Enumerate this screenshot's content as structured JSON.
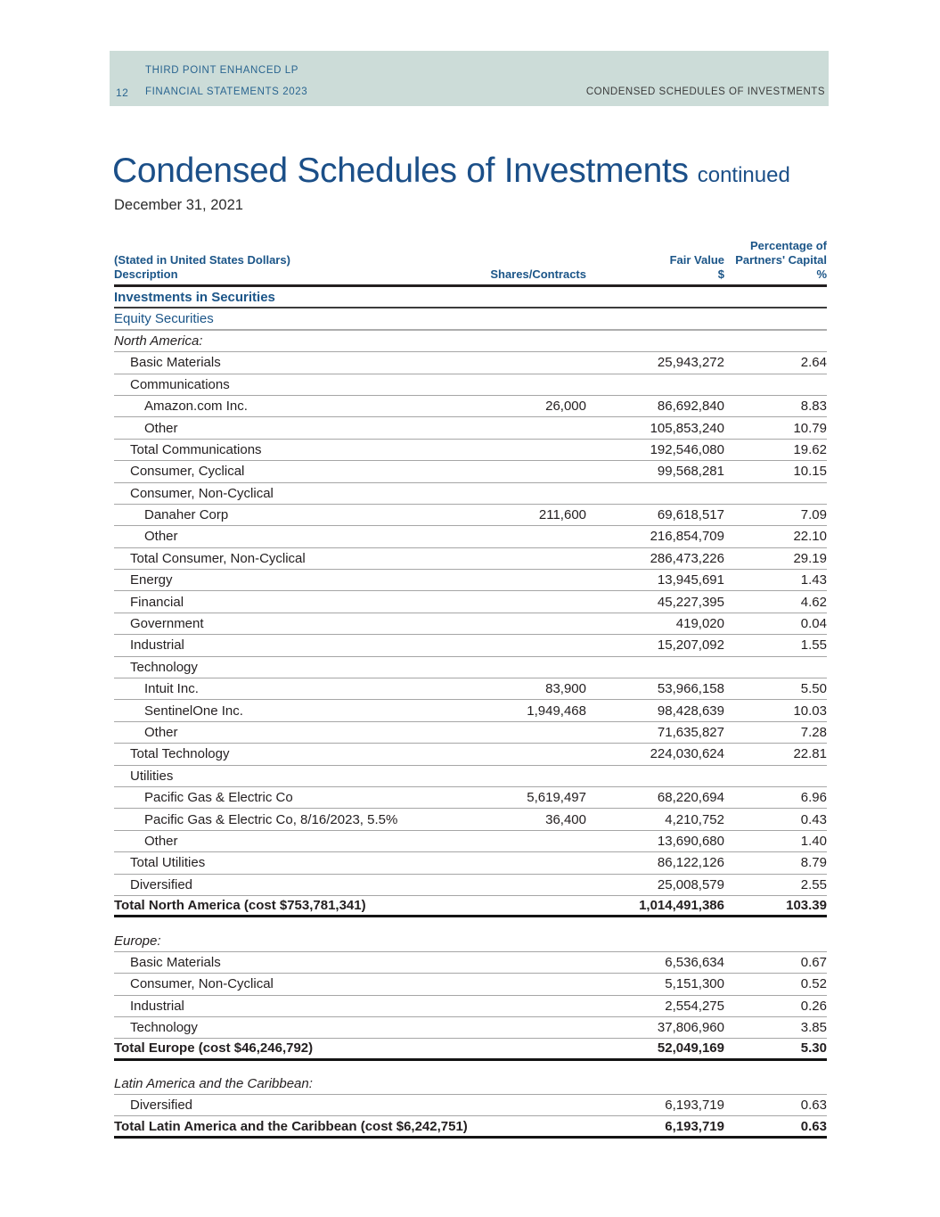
{
  "header_bar": {
    "page_number": "12",
    "line1": "THIRD POINT ENHANCED LP",
    "line2": "FINANCIAL STATEMENTS 2023",
    "right_text": "CONDENSED SCHEDULES OF INVESTMENTS",
    "bg_color": "#ccdcd8",
    "text_color": "#2a6590"
  },
  "title": {
    "main": "Condensed Schedules of Investments",
    "suffix": "continued",
    "date": "December 31, 2021",
    "accent_color": "#1b4f88"
  },
  "table": {
    "header": {
      "stated": "(Stated in United States Dollars)",
      "description": "Description",
      "shares": "Shares/Contracts",
      "fair_value_line1": "Fair Value",
      "fair_value_line2": "$",
      "pct_line1": "Percentage of",
      "pct_line2": "Partners' Capital",
      "pct_line3": "%"
    },
    "rows": [
      {
        "label": "Investments in Securities",
        "style": "head-bold-blue",
        "indent": 0
      },
      {
        "label": "Equity Securities",
        "style": "head-blue",
        "indent": 0
      },
      {
        "label": "North America:",
        "style": "region",
        "indent": 0
      },
      {
        "label": "Basic Materials",
        "indent": 1,
        "fair": "25,943,272",
        "pct": "2.64"
      },
      {
        "label": "Communications",
        "indent": 1
      },
      {
        "label": "Amazon.com Inc.",
        "indent": 2,
        "shares": "26,000",
        "fair": "86,692,840",
        "pct": "8.83"
      },
      {
        "label": "Other",
        "indent": 2,
        "fair": "105,853,240",
        "pct": "10.79"
      },
      {
        "label": "Total Communications",
        "indent": 1,
        "fair": "192,546,080",
        "pct": "19.62"
      },
      {
        "label": "Consumer, Cyclical",
        "indent": 1,
        "fair": "99,568,281",
        "pct": "10.15"
      },
      {
        "label": "Consumer, Non-Cyclical",
        "indent": 1
      },
      {
        "label": "Danaher Corp",
        "indent": 2,
        "shares": "211,600",
        "fair": "69,618,517",
        "pct": "7.09"
      },
      {
        "label": "Other",
        "indent": 2,
        "fair": "216,854,709",
        "pct": "22.10"
      },
      {
        "label": "Total Consumer, Non-Cyclical",
        "indent": 1,
        "fair": "286,473,226",
        "pct": "29.19"
      },
      {
        "label": "Energy",
        "indent": 1,
        "fair": "13,945,691",
        "pct": "1.43"
      },
      {
        "label": "Financial",
        "indent": 1,
        "fair": "45,227,395",
        "pct": "4.62"
      },
      {
        "label": "Government",
        "indent": 1,
        "fair": "419,020",
        "pct": "0.04"
      },
      {
        "label": "Industrial",
        "indent": 1,
        "fair": "15,207,092",
        "pct": "1.55"
      },
      {
        "label": "Technology",
        "indent": 1
      },
      {
        "label": "Intuit Inc.",
        "indent": 2,
        "shares": "83,900",
        "fair": "53,966,158",
        "pct": "5.50"
      },
      {
        "label": "SentinelOne Inc.",
        "indent": 2,
        "shares": "1,949,468",
        "fair": "98,428,639",
        "pct": "10.03"
      },
      {
        "label": "Other",
        "indent": 2,
        "fair": "71,635,827",
        "pct": "7.28"
      },
      {
        "label": "Total Technology",
        "indent": 1,
        "fair": "224,030,624",
        "pct": "22.81"
      },
      {
        "label": "Utilities",
        "indent": 1
      },
      {
        "label": "Pacific Gas & Electric Co",
        "indent": 2,
        "shares": "5,619,497",
        "fair": "68,220,694",
        "pct": "6.96"
      },
      {
        "label": "Pacific Gas & Electric Co, 8/16/2023, 5.5%",
        "indent": 2,
        "shares": "36,400",
        "fair": "4,210,752",
        "pct": "0.43"
      },
      {
        "label": "Other",
        "indent": 2,
        "fair": "13,690,680",
        "pct": "1.40"
      },
      {
        "label": "Total Utilities",
        "indent": 1,
        "fair": "86,122,126",
        "pct": "8.79"
      },
      {
        "label": "Diversified",
        "indent": 1,
        "fair": "25,008,579",
        "pct": "2.55"
      },
      {
        "label": "Total North America (cost $753,781,341)",
        "style": "total",
        "indent": 0,
        "fair": "1,014,491,386",
        "pct": "103.39"
      },
      {
        "style": "spacer"
      },
      {
        "label": "Europe:",
        "style": "region",
        "indent": 0
      },
      {
        "label": "Basic Materials",
        "indent": 1,
        "fair": "6,536,634",
        "pct": "0.67"
      },
      {
        "label": "Consumer, Non-Cyclical",
        "indent": 1,
        "fair": "5,151,300",
        "pct": "0.52"
      },
      {
        "label": "Industrial",
        "indent": 1,
        "fair": "2,554,275",
        "pct": "0.26"
      },
      {
        "label": "Technology",
        "indent": 1,
        "fair": "37,806,960",
        "pct": "3.85"
      },
      {
        "label": "Total Europe (cost $46,246,792)",
        "style": "total",
        "indent": 0,
        "fair": "52,049,169",
        "pct": "5.30"
      },
      {
        "style": "spacer"
      },
      {
        "label": "Latin America and the Caribbean:",
        "style": "region",
        "indent": 0
      },
      {
        "label": "Diversified",
        "indent": 1,
        "fair": "6,193,719",
        "pct": "0.63"
      },
      {
        "label": "Total Latin America and the Caribbean (cost $6,242,751)",
        "style": "total",
        "indent": 0,
        "fair": "6,193,719",
        "pct": "0.63"
      }
    ]
  }
}
